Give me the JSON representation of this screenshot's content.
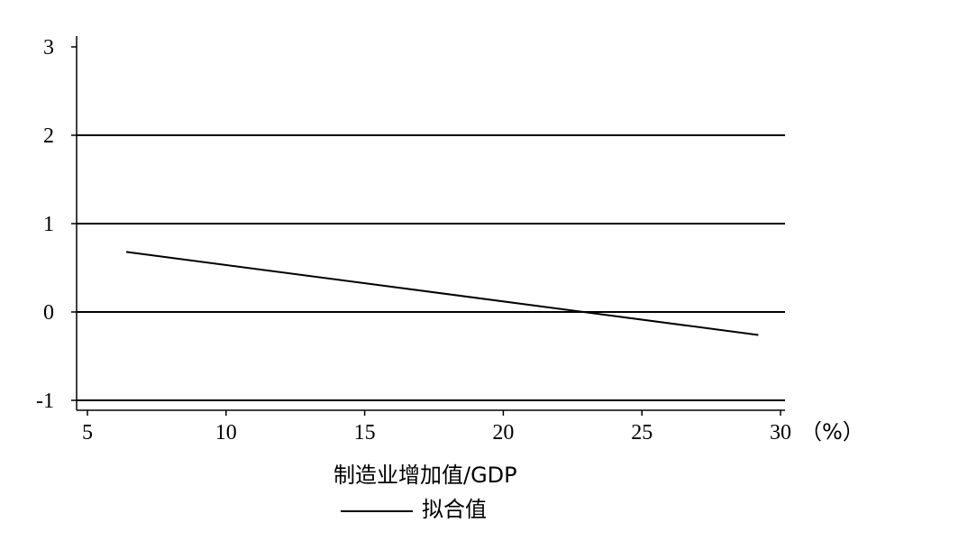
{
  "chart_data": {
    "type": "line",
    "xlabel": "制造业增加值/GDP",
    "x_unit": "（%）",
    "ylabel": "",
    "xlim": [
      5,
      30
    ],
    "ylim": [
      -1,
      3
    ],
    "x_ticks": [
      5,
      10,
      15,
      20,
      25,
      30
    ],
    "y_ticks": [
      3,
      2,
      1,
      0,
      -1
    ],
    "grid": true,
    "grid_lines_y": [
      2,
      1,
      0,
      -1
    ],
    "legend_position": "bottom",
    "series": [
      {
        "name": "拟合值",
        "x": [
          6.4,
          29.2
        ],
        "y": [
          0.68,
          -0.26
        ],
        "color": "#000000"
      }
    ]
  }
}
